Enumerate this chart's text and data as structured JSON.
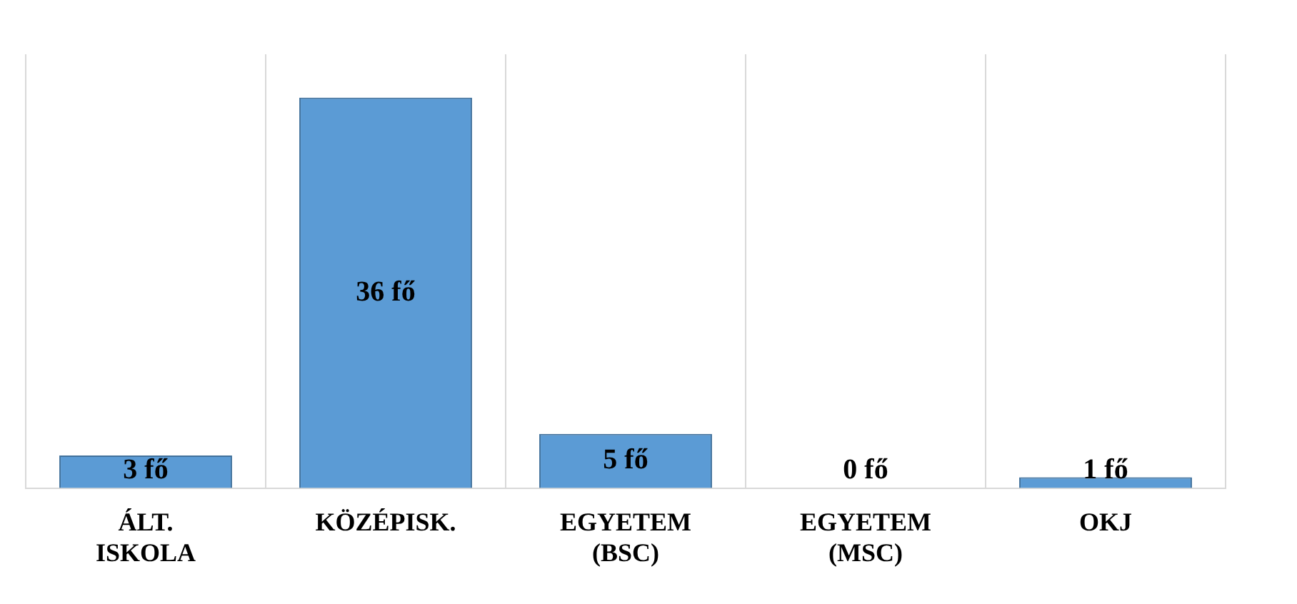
{
  "chart_data": {
    "type": "bar",
    "categories": [
      "ÁLT. ISKOLA",
      "KÖZÉPISK.",
      "EGYETEM (BSC)",
      "EGYETEM (MSC)",
      "OKJ"
    ],
    "values": [
      3,
      36,
      5,
      0,
      1
    ],
    "value_labels": [
      "3 fő",
      "36 fő",
      "5 fő",
      "0 fő",
      "1 fő"
    ],
    "color": "#5b9bd5",
    "grid": "x",
    "legend": false
  }
}
